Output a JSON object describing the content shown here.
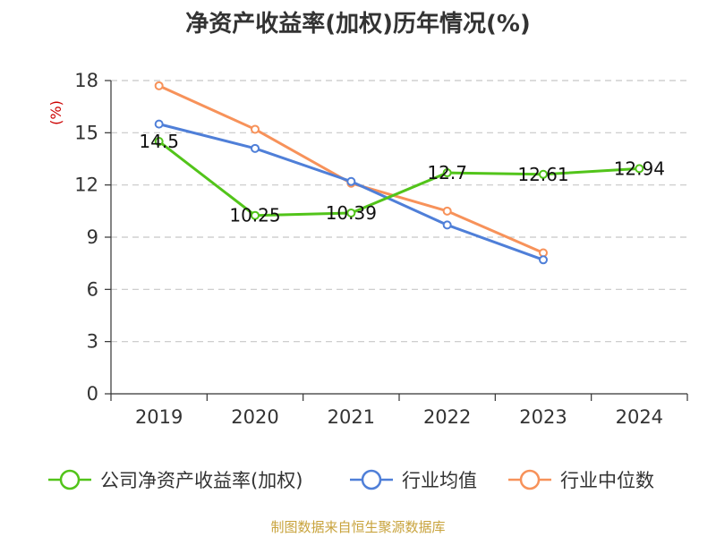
{
  "title": "净资产收益率(加权)历年情况(%)",
  "unit_label": "(%)",
  "source": "制图数据来自恒生聚源数据库",
  "chart_data": {
    "type": "line",
    "title": "净资产收益率(加权)历年情况(%)",
    "ylabel": "(%)",
    "categories": [
      "2019",
      "2020",
      "2021",
      "2022",
      "2023",
      "2024"
    ],
    "ylim": [
      0,
      18
    ],
    "yticks": [
      0,
      3,
      6,
      9,
      12,
      15,
      18
    ],
    "grid": true,
    "legend_position": "bottom",
    "series": [
      {
        "name": "公司净资产收益率(加权)",
        "color": "#52c41a",
        "values": [
          14.5,
          10.25,
          10.39,
          12.7,
          12.61,
          12.94
        ],
        "labels": [
          "14.5",
          "10.25",
          "10.39",
          "12.7",
          "12.61",
          "12.94"
        ]
      },
      {
        "name": "行业均值",
        "color": "#4f7fd8",
        "values": [
          15.5,
          14.1,
          12.2,
          9.7,
          7.7,
          null
        ]
      },
      {
        "name": "行业中位数",
        "color": "#f7925a",
        "values": [
          17.7,
          15.2,
          12.1,
          10.5,
          8.1,
          null
        ]
      }
    ]
  }
}
